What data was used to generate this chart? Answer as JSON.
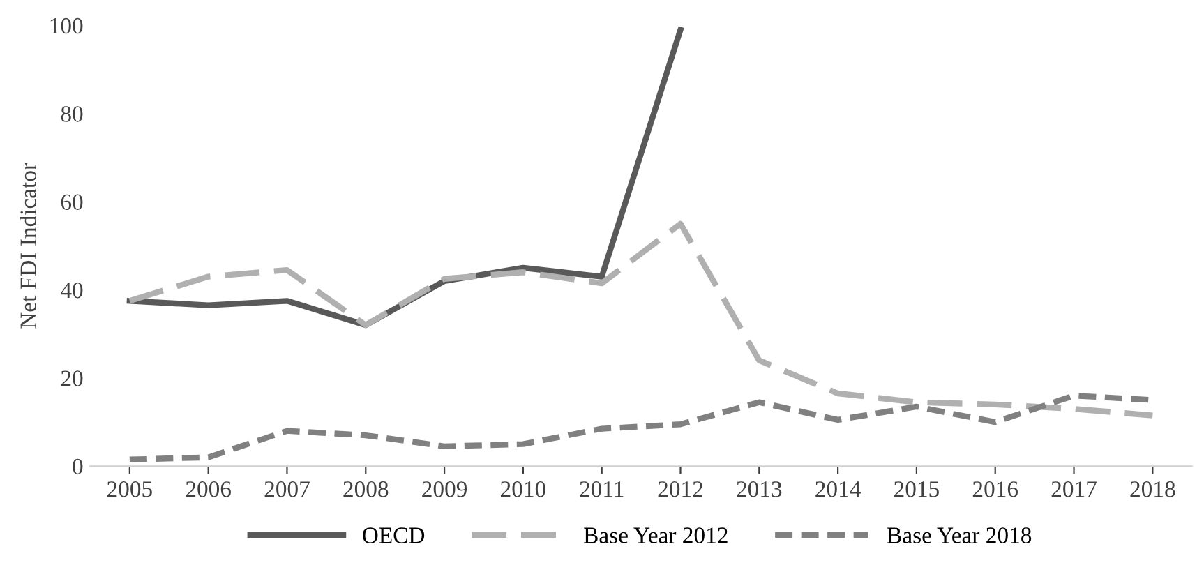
{
  "chart_data": {
    "type": "line",
    "ylabel": "Net FDI Indicator",
    "categories": [
      "2005",
      "2006",
      "2007",
      "2008",
      "2009",
      "2010",
      "2011",
      "2012",
      "2013",
      "2014",
      "2015",
      "2016",
      "2017",
      "2018"
    ],
    "series": [
      {
        "name": "OECD",
        "color": "#595959",
        "line_style": "solid",
        "values": [
          37.5,
          36.5,
          37.5,
          32,
          42,
          45,
          43,
          99,
          null,
          null,
          null,
          null,
          null,
          null
        ]
      },
      {
        "name": "Base Year 2012",
        "color": "#b0b0b0",
        "line_style": "longdash",
        "values": [
          37.5,
          43,
          44.5,
          32,
          42.5,
          44,
          41.5,
          55,
          24,
          16.5,
          14.5,
          14,
          13,
          11.5
        ]
      },
      {
        "name": "Base Year 2018",
        "color": "#808080",
        "line_style": "dashed",
        "values": [
          1.5,
          2,
          8,
          7,
          4.5,
          5,
          8.5,
          9.5,
          14.5,
          10.5,
          13.5,
          10,
          16,
          15
        ]
      }
    ],
    "ylim": [
      0,
      100
    ],
    "yticks": [
      0,
      20,
      40,
      60,
      80,
      100
    ],
    "grid": false,
    "legend": "bottom"
  }
}
